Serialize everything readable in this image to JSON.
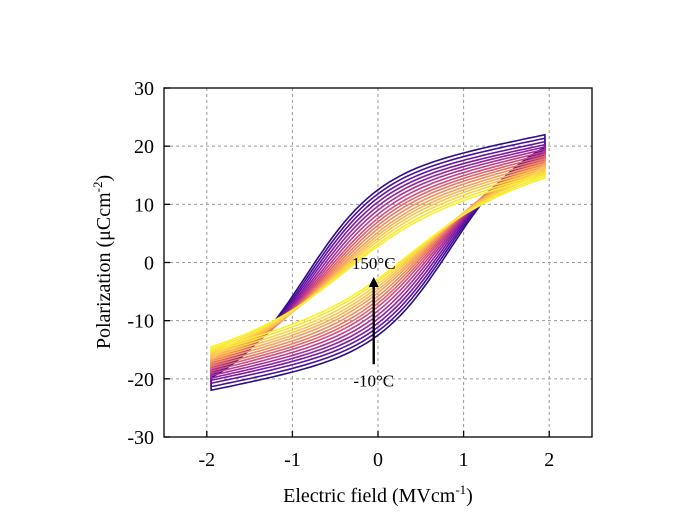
{
  "chart_data": {
    "type": "line",
    "title": "",
    "xlabel": "Electric field (MVcm",
    "xlabel_sup": "-1",
    "xlabel_end": ")",
    "ylabel": "Polarization (μCcm",
    "ylabel_sup": "-2",
    "ylabel_end": ")",
    "xlim": [
      -2.5,
      2.5
    ],
    "ylim": [
      -30,
      30
    ],
    "x_ticks": [
      -2,
      -1,
      0,
      1,
      2
    ],
    "y_ticks": [
      -30,
      -20,
      -10,
      0,
      10,
      20,
      30
    ],
    "x_tick_labels": [
      "-2",
      "-1",
      "0",
      "1",
      "2"
    ],
    "y_tick_labels": [
      "-30",
      "-20",
      "-10",
      "0",
      "10",
      "20",
      "30"
    ],
    "grid": true,
    "legend": "none",
    "colormap": [
      "#2a0d8c",
      "#6a12a6",
      "#a0269c",
      "#cf4a7e",
      "#ec7b5c",
      "#f8a95a",
      "#fbd14a",
      "#f7f22c"
    ],
    "annotations": {
      "low_temp_label": "-10°C",
      "high_temp_label": "150°C",
      "arrow_x": -0.05,
      "arrow_from_y": -17.5,
      "arrow_to_y": -2.5
    },
    "series": [
      {
        "temperature_c": -10,
        "emax": 1.95,
        "pmax": 22.0,
        "pr": 12.5,
        "ec": 0.85
      },
      {
        "temperature_c": 0,
        "emax": 1.95,
        "pmax": 21.4,
        "pr": 11.8,
        "ec": 0.82
      },
      {
        "temperature_c": 10,
        "emax": 1.95,
        "pmax": 20.8,
        "pr": 11.1,
        "ec": 0.79
      },
      {
        "temperature_c": 20,
        "emax": 1.95,
        "pmax": 20.3,
        "pr": 10.4,
        "ec": 0.76
      },
      {
        "temperature_c": 30,
        "emax": 1.95,
        "pmax": 19.9,
        "pr": 9.7,
        "ec": 0.73
      },
      {
        "temperature_c": 40,
        "emax": 1.95,
        "pmax": 19.5,
        "pr": 9.0,
        "ec": 0.7
      },
      {
        "temperature_c": 50,
        "emax": 1.95,
        "pmax": 19.1,
        "pr": 8.3,
        "ec": 0.67
      },
      {
        "temperature_c": 60,
        "emax": 1.95,
        "pmax": 18.7,
        "pr": 7.6,
        "ec": 0.64
      },
      {
        "temperature_c": 70,
        "emax": 1.95,
        "pmax": 18.3,
        "pr": 7.0,
        "ec": 0.61
      },
      {
        "temperature_c": 80,
        "emax": 1.95,
        "pmax": 17.9,
        "pr": 6.4,
        "ec": 0.58
      },
      {
        "temperature_c": 90,
        "emax": 1.95,
        "pmax": 17.5,
        "pr": 5.8,
        "ec": 0.55
      },
      {
        "temperature_c": 100,
        "emax": 1.95,
        "pmax": 17.1,
        "pr": 5.2,
        "ec": 0.52
      },
      {
        "temperature_c": 110,
        "emax": 1.95,
        "pmax": 16.7,
        "pr": 4.7,
        "ec": 0.49
      },
      {
        "temperature_c": 120,
        "emax": 1.95,
        "pmax": 16.3,
        "pr": 4.2,
        "ec": 0.46
      },
      {
        "temperature_c": 130,
        "emax": 1.95,
        "pmax": 15.9,
        "pr": 3.7,
        "ec": 0.43
      },
      {
        "temperature_c": 140,
        "emax": 1.95,
        "pmax": 15.5,
        "pr": 3.2,
        "ec": 0.4
      },
      {
        "temperature_c": 150,
        "emax": 1.95,
        "pmax": 15.1,
        "pr": 2.8,
        "ec": 0.37
      }
    ]
  }
}
